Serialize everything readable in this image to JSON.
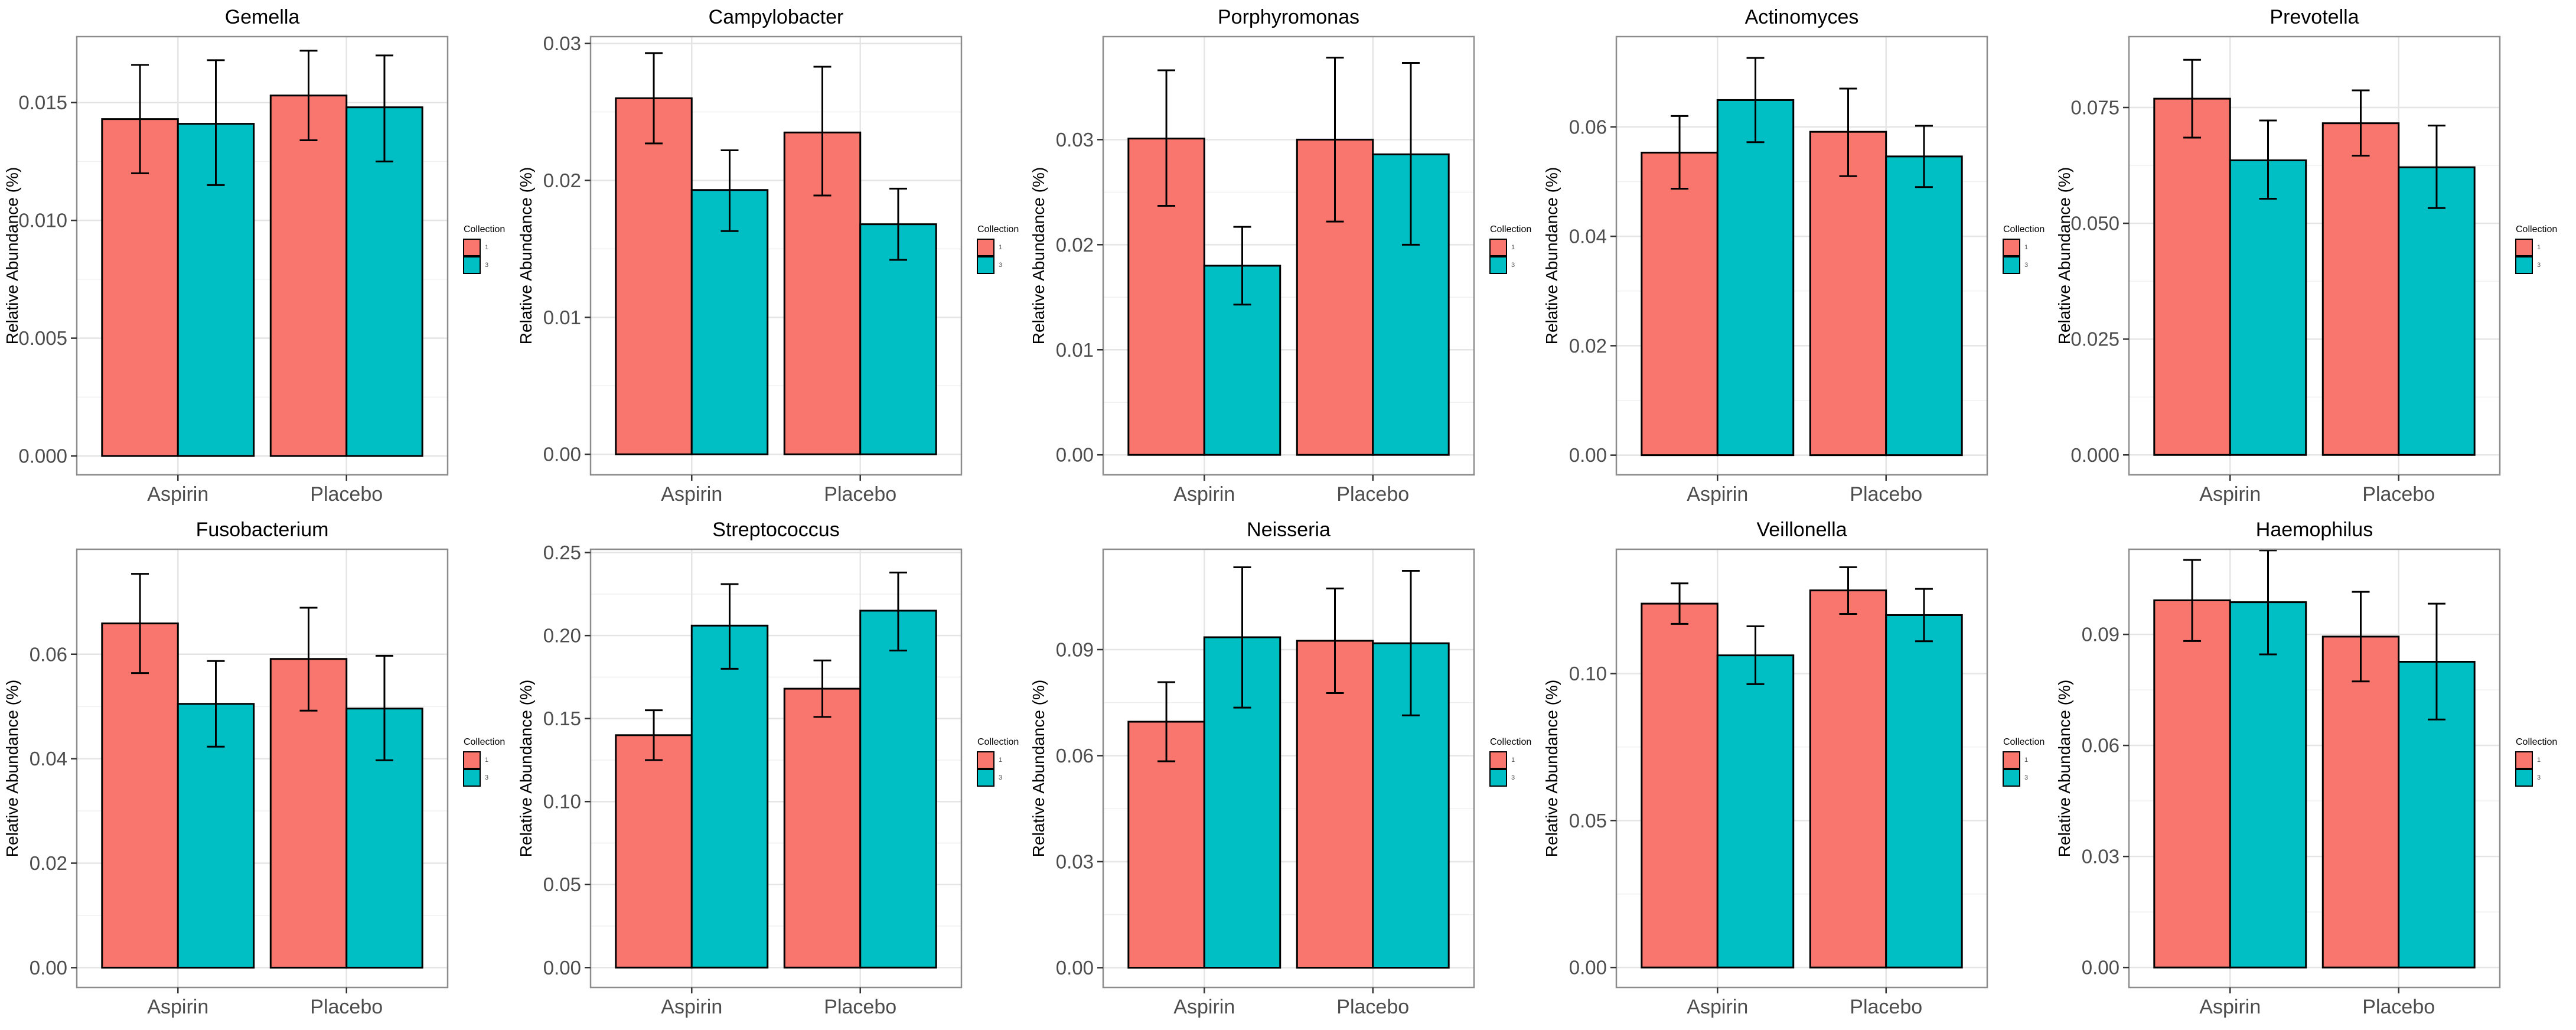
{
  "figure": {
    "legend_title": "Collection",
    "colors": {
      "collection_1": "#f8766d",
      "collection_3": "#00bfc4",
      "grid": "#e5e5e5",
      "panel_border": "#8c8c8c",
      "text": "#000000",
      "tick_text": "#4d4d4d"
    }
  },
  "chart_data": [
    {
      "type": "bar",
      "title": "Gemella",
      "xlabel": "",
      "ylabel": "Relative Abundance (%)",
      "categories": [
        "Aspirin",
        "Placebo"
      ],
      "ylim": [
        -0.0008,
        0.0178
      ],
      "yticks": [
        0.0,
        0.005,
        0.01,
        0.015
      ],
      "ytick_labels": [
        "0.000",
        "0.005",
        "0.010",
        "0.015"
      ],
      "legend": {
        "title": "Collection",
        "entries": [
          "1",
          "3"
        ],
        "position": "right"
      },
      "series": [
        {
          "name": "1",
          "values": [
            0.0143,
            0.0153
          ],
          "err_low": [
            0.012,
            0.0134
          ],
          "err_high": [
            0.0166,
            0.0172
          ]
        },
        {
          "name": "3",
          "values": [
            0.0141,
            0.0148
          ],
          "err_low": [
            0.0115,
            0.0125
          ],
          "err_high": [
            0.0168,
            0.017
          ]
        }
      ]
    },
    {
      "type": "bar",
      "title": "Campylobacter",
      "xlabel": "",
      "ylabel": "Relative Abundance (%)",
      "categories": [
        "Aspirin",
        "Placebo"
      ],
      "ylim": [
        -0.0015,
        0.0305
      ],
      "yticks": [
        0.0,
        0.01,
        0.02,
        0.03
      ],
      "ytick_labels": [
        "0.00",
        "0.01",
        "0.02",
        "0.03"
      ],
      "legend": {
        "title": "Collection",
        "entries": [
          "1",
          "3"
        ],
        "position": "right"
      },
      "series": [
        {
          "name": "1",
          "values": [
            0.026,
            0.0235
          ],
          "err_low": [
            0.0227,
            0.0189
          ],
          "err_high": [
            0.0293,
            0.0283
          ]
        },
        {
          "name": "3",
          "values": [
            0.0193,
            0.0168
          ],
          "err_low": [
            0.0163,
            0.0142
          ],
          "err_high": [
            0.0222,
            0.0194
          ]
        }
      ]
    },
    {
      "type": "bar",
      "title": "Porphyromonas",
      "xlabel": "",
      "ylabel": "Relative Abundance (%)",
      "categories": [
        "Aspirin",
        "Placebo"
      ],
      "ylim": [
        -0.0019,
        0.0398
      ],
      "yticks": [
        0.0,
        0.01,
        0.02,
        0.03
      ],
      "ytick_labels": [
        "0.00",
        "0.01",
        "0.02",
        "0.03"
      ],
      "legend": {
        "title": "Collection",
        "entries": [
          "1",
          "3"
        ],
        "position": "right"
      },
      "series": [
        {
          "name": "1",
          "values": [
            0.0301,
            0.03
          ],
          "err_low": [
            0.0237,
            0.0222
          ],
          "err_high": [
            0.0366,
            0.0378
          ]
        },
        {
          "name": "3",
          "values": [
            0.018,
            0.0286
          ],
          "err_low": [
            0.0143,
            0.02
          ],
          "err_high": [
            0.0217,
            0.0373
          ]
        }
      ]
    },
    {
      "type": "bar",
      "title": "Actinomyces",
      "xlabel": "",
      "ylabel": "Relative Abundance (%)",
      "categories": [
        "Aspirin",
        "Placebo"
      ],
      "ylim": [
        -0.0036,
        0.0765
      ],
      "yticks": [
        0.0,
        0.02,
        0.04,
        0.06
      ],
      "ytick_labels": [
        "0.00",
        "0.02",
        "0.04",
        "0.06"
      ],
      "legend": {
        "title": "Collection",
        "entries": [
          "1",
          "3"
        ],
        "position": "right"
      },
      "series": [
        {
          "name": "1",
          "values": [
            0.0553,
            0.0591
          ],
          "err_low": [
            0.0487,
            0.051
          ],
          "err_high": [
            0.062,
            0.067
          ]
        },
        {
          "name": "3",
          "values": [
            0.0649,
            0.0546
          ],
          "err_low": [
            0.0572,
            0.049
          ],
          "err_high": [
            0.0726,
            0.0602
          ]
        }
      ]
    },
    {
      "type": "bar",
      "title": "Prevotella",
      "xlabel": "",
      "ylabel": "Relative Abundance (%)",
      "categories": [
        "Aspirin",
        "Placebo"
      ],
      "ylim": [
        -0.0043,
        0.0903
      ],
      "yticks": [
        0.0,
        0.025,
        0.05,
        0.075
      ],
      "ytick_labels": [
        "0.000",
        "0.025",
        "0.050",
        "0.075"
      ],
      "legend": {
        "title": "Collection",
        "entries": [
          "1",
          "3"
        ],
        "position": "right"
      },
      "series": [
        {
          "name": "1",
          "values": [
            0.0769,
            0.0716
          ],
          "err_low": [
            0.0685,
            0.0646
          ],
          "err_high": [
            0.0853,
            0.0787
          ]
        },
        {
          "name": "3",
          "values": [
            0.0636,
            0.0621
          ],
          "err_low": [
            0.0553,
            0.0533
          ],
          "err_high": [
            0.0722,
            0.0711
          ]
        }
      ]
    },
    {
      "type": "bar",
      "title": "Fusobacterium",
      "xlabel": "",
      "ylabel": "Relative Abundance (%)",
      "categories": [
        "Aspirin",
        "Placebo"
      ],
      "ylim": [
        -0.0038,
        0.0801
      ],
      "yticks": [
        0.0,
        0.02,
        0.04,
        0.06
      ],
      "ytick_labels": [
        "0.00",
        "0.02",
        "0.04",
        "0.06"
      ],
      "legend": {
        "title": "Collection",
        "entries": [
          "1",
          "3"
        ],
        "position": "right"
      },
      "series": [
        {
          "name": "1",
          "values": [
            0.0659,
            0.0591
          ],
          "err_low": [
            0.0564,
            0.0492
          ],
          "err_high": [
            0.0754,
            0.0689
          ]
        },
        {
          "name": "3",
          "values": [
            0.0505,
            0.0496
          ],
          "err_low": [
            0.0423,
            0.0397
          ],
          "err_high": [
            0.0587,
            0.0597
          ]
        }
      ]
    },
    {
      "type": "bar",
      "title": "Streptococcus",
      "xlabel": "",
      "ylabel": "Relative Abundance (%)",
      "categories": [
        "Aspirin",
        "Placebo"
      ],
      "ylim": [
        -0.012,
        0.252
      ],
      "yticks": [
        0.0,
        0.05,
        0.1,
        0.15,
        0.2,
        0.25
      ],
      "ytick_labels": [
        "0.00",
        "0.05",
        "0.10",
        "0.15",
        "0.20",
        "0.25"
      ],
      "legend": {
        "title": "Collection",
        "entries": [
          "1",
          "3"
        ],
        "position": "right"
      },
      "series": [
        {
          "name": "1",
          "values": [
            0.14,
            0.168
          ],
          "err_low": [
            0.125,
            0.151
          ],
          "err_high": [
            0.155,
            0.185
          ]
        },
        {
          "name": "3",
          "values": [
            0.206,
            0.215
          ],
          "err_low": [
            0.18,
            0.191
          ],
          "err_high": [
            0.231,
            0.238
          ]
        }
      ]
    },
    {
      "type": "bar",
      "title": "Neisseria",
      "xlabel": "",
      "ylabel": "Relative Abundance (%)",
      "categories": [
        "Aspirin",
        "Placebo"
      ],
      "ylim": [
        -0.0056,
        0.1184
      ],
      "yticks": [
        0.0,
        0.03,
        0.06,
        0.09
      ],
      "ytick_labels": [
        "0.00",
        "0.03",
        "0.06",
        "0.09"
      ],
      "legend": {
        "title": "Collection",
        "entries": [
          "1",
          "3"
        ],
        "position": "right"
      },
      "series": [
        {
          "name": "1",
          "values": [
            0.0696,
            0.0925
          ],
          "err_low": [
            0.0584,
            0.0777
          ],
          "err_high": [
            0.0808,
            0.1073
          ]
        },
        {
          "name": "3",
          "values": [
            0.0935,
            0.0918
          ],
          "err_low": [
            0.0736,
            0.0714
          ],
          "err_high": [
            0.1133,
            0.1123
          ]
        }
      ]
    },
    {
      "type": "bar",
      "title": "Veillonella",
      "xlabel": "",
      "ylabel": "Relative Abundance (%)",
      "categories": [
        "Aspirin",
        "Placebo"
      ],
      "ylim": [
        -0.0068,
        0.1423
      ],
      "yticks": [
        0.0,
        0.05,
        0.1
      ],
      "ytick_labels": [
        "0.00",
        "0.05",
        "0.10"
      ],
      "legend": {
        "title": "Collection",
        "entries": [
          "1",
          "3"
        ],
        "position": "right"
      },
      "series": [
        {
          "name": "1",
          "values": [
            0.1238,
            0.1283
          ],
          "err_low": [
            0.1169,
            0.1203
          ],
          "err_high": [
            0.1307,
            0.1362
          ]
        },
        {
          "name": "3",
          "values": [
            0.1062,
            0.1199
          ],
          "err_low": [
            0.0964,
            0.111
          ],
          "err_high": [
            0.1161,
            0.1288
          ]
        }
      ]
    },
    {
      "type": "bar",
      "title": "Haemophilus",
      "xlabel": "",
      "ylabel": "Relative Abundance (%)",
      "categories": [
        "Aspirin",
        "Placebo"
      ],
      "ylim": [
        -0.0054,
        0.113
      ],
      "yticks": [
        0.0,
        0.03,
        0.06,
        0.09
      ],
      "ytick_labels": [
        "0.00",
        "0.03",
        "0.06",
        "0.09"
      ],
      "legend": {
        "title": "Collection",
        "entries": [
          "1",
          "3"
        ],
        "position": "right"
      },
      "series": [
        {
          "name": "1",
          "values": [
            0.0992,
            0.0894
          ],
          "err_low": [
            0.0882,
            0.0773
          ],
          "err_high": [
            0.1101,
            0.1015
          ]
        },
        {
          "name": "3",
          "values": [
            0.0987,
            0.0826
          ],
          "err_low": [
            0.0846,
            0.067
          ],
          "err_high": [
            0.1127,
            0.0983
          ]
        }
      ]
    }
  ]
}
